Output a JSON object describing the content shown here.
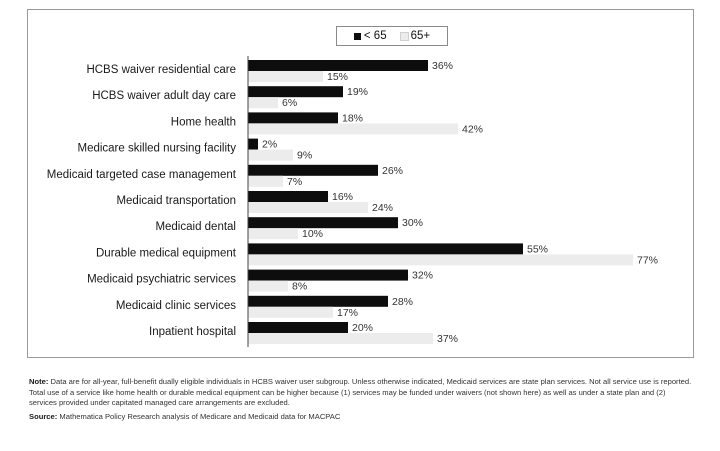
{
  "colors": {
    "under65": "#0d0d0d",
    "over65": "#ececec",
    "frame": "#9a9a9a"
  },
  "legend": {
    "under65_label": "< 65",
    "over65_label": "65+"
  },
  "chart_data": {
    "type": "bar",
    "orientation": "horizontal",
    "title": "",
    "xlabel": "",
    "ylabel": "",
    "xlim": [
      0,
      100
    ],
    "grid": false,
    "legend_position": "top-center",
    "value_suffix": "%",
    "categories": [
      "HCBS waiver residential care",
      "HCBS waiver adult day care",
      "Home health",
      "Medicare skilled nursing facility",
      "Medicaid targeted case management",
      "Medicaid transportation",
      "Medicaid dental",
      "Durable medical equipment",
      "Medicaid psychiatric services",
      "Medicaid clinic services",
      "Inpatient hospital"
    ],
    "series": [
      {
        "name": "< 65",
        "values": [
          36,
          19,
          18,
          2,
          26,
          16,
          30,
          55,
          32,
          28,
          20
        ]
      },
      {
        "name": "65+",
        "values": [
          15,
          6,
          42,
          9,
          7,
          24,
          10,
          77,
          8,
          17,
          37
        ]
      }
    ]
  },
  "note": {
    "note_label": "Note:",
    "note_text": "Data are for all-year, full-benefit dually eligible individuals in HCBS waiver user subgroup. Unless otherwise indicated, Medicaid services are state plan services. Not all service use is reported. Total use of a service like home health or durable medical equipment can be higher because (1) services may be funded under waivers (not shown here) as well as under a state plan and (2) services provided under capitated managed care arrangements are excluded.",
    "source_label": "Source:",
    "source_text": "Mathematica Policy Research analysis of Medicare and Medicaid data for MACPAC"
  }
}
